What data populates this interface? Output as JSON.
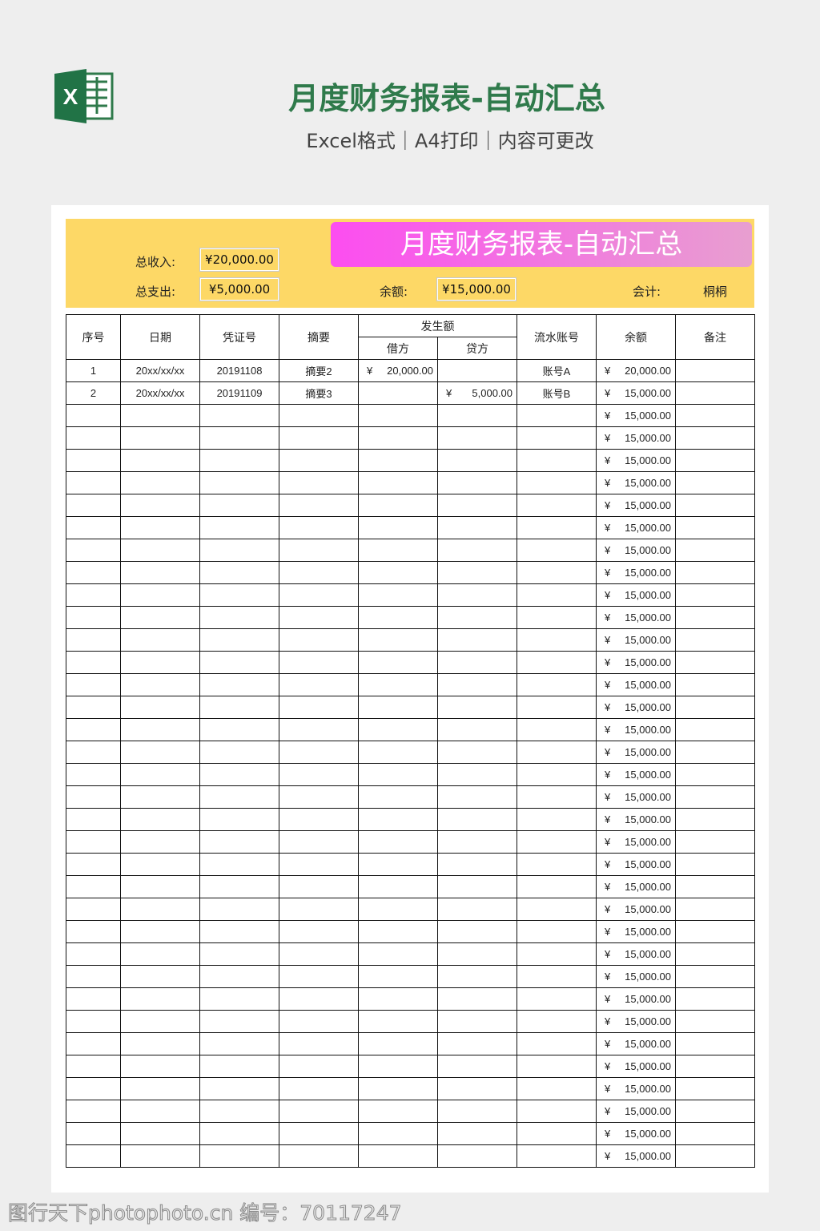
{
  "header": {
    "title": "月度财务报表-自动汇总",
    "subtitle": "Excel格式｜A4打印｜内容可更改",
    "logo_letter": "X"
  },
  "summary": {
    "banner": "月度财务报表-自动汇总",
    "income_label": "总收入:",
    "income": "¥20,000.00",
    "expense_label": "总支出:",
    "expense": "¥5,000.00",
    "balance_label": "余额:",
    "balance": "¥15,000.00",
    "accountant_label": "会计:",
    "accountant": "桐桐"
  },
  "colors": {
    "band": "#fdd866",
    "banner_start": "#fc4df0",
    "banner_end": "#e89fd0",
    "title": "#2f7a4b"
  },
  "table": {
    "headers": {
      "seq": "序号",
      "date": "日期",
      "voucher": "凭证号",
      "summary": "摘要",
      "amount": "发生额",
      "debit": "借方",
      "credit": "贷方",
      "account": "流水账号",
      "balance": "余额",
      "note": "备注"
    },
    "currency": "¥",
    "rows": [
      [
        "1",
        "20xx/xx/xx",
        "20191108",
        "摘要2",
        "20,000.00",
        "",
        "账号A",
        "20,000.00",
        ""
      ],
      [
        "2",
        "20xx/xx/xx",
        "20191109",
        "摘要3",
        "",
        "5,000.00",
        "账号B",
        "15,000.00",
        ""
      ],
      [
        "",
        "",
        "",
        "",
        "",
        "",
        "",
        "15,000.00",
        ""
      ],
      [
        "",
        "",
        "",
        "",
        "",
        "",
        "",
        "15,000.00",
        ""
      ],
      [
        "",
        "",
        "",
        "",
        "",
        "",
        "",
        "15,000.00",
        ""
      ],
      [
        "",
        "",
        "",
        "",
        "",
        "",
        "",
        "15,000.00",
        ""
      ],
      [
        "",
        "",
        "",
        "",
        "",
        "",
        "",
        "15,000.00",
        ""
      ],
      [
        "",
        "",
        "",
        "",
        "",
        "",
        "",
        "15,000.00",
        ""
      ],
      [
        "",
        "",
        "",
        "",
        "",
        "",
        "",
        "15,000.00",
        ""
      ],
      [
        "",
        "",
        "",
        "",
        "",
        "",
        "",
        "15,000.00",
        ""
      ],
      [
        "",
        "",
        "",
        "",
        "",
        "",
        "",
        "15,000.00",
        ""
      ],
      [
        "",
        "",
        "",
        "",
        "",
        "",
        "",
        "15,000.00",
        ""
      ],
      [
        "",
        "",
        "",
        "",
        "",
        "",
        "",
        "15,000.00",
        ""
      ],
      [
        "",
        "",
        "",
        "",
        "",
        "",
        "",
        "15,000.00",
        ""
      ],
      [
        "",
        "",
        "",
        "",
        "",
        "",
        "",
        "15,000.00",
        ""
      ],
      [
        "",
        "",
        "",
        "",
        "",
        "",
        "",
        "15,000.00",
        ""
      ],
      [
        "",
        "",
        "",
        "",
        "",
        "",
        "",
        "15,000.00",
        ""
      ],
      [
        "",
        "",
        "",
        "",
        "",
        "",
        "",
        "15,000.00",
        ""
      ],
      [
        "",
        "",
        "",
        "",
        "",
        "",
        "",
        "15,000.00",
        ""
      ],
      [
        "",
        "",
        "",
        "",
        "",
        "",
        "",
        "15,000.00",
        ""
      ],
      [
        "",
        "",
        "",
        "",
        "",
        "",
        "",
        "15,000.00",
        ""
      ],
      [
        "",
        "",
        "",
        "",
        "",
        "",
        "",
        "15,000.00",
        ""
      ],
      [
        "",
        "",
        "",
        "",
        "",
        "",
        "",
        "15,000.00",
        ""
      ],
      [
        "",
        "",
        "",
        "",
        "",
        "",
        "",
        "15,000.00",
        ""
      ],
      [
        "",
        "",
        "",
        "",
        "",
        "",
        "",
        "15,000.00",
        ""
      ],
      [
        "",
        "",
        "",
        "",
        "",
        "",
        "",
        "15,000.00",
        ""
      ],
      [
        "",
        "",
        "",
        "",
        "",
        "",
        "",
        "15,000.00",
        ""
      ],
      [
        "",
        "",
        "",
        "",
        "",
        "",
        "",
        "15,000.00",
        ""
      ],
      [
        "",
        "",
        "",
        "",
        "",
        "",
        "",
        "15,000.00",
        ""
      ],
      [
        "",
        "",
        "",
        "",
        "",
        "",
        "",
        "15,000.00",
        ""
      ],
      [
        "",
        "",
        "",
        "",
        "",
        "",
        "",
        "15,000.00",
        ""
      ],
      [
        "",
        "",
        "",
        "",
        "",
        "",
        "",
        "15,000.00",
        ""
      ],
      [
        "",
        "",
        "",
        "",
        "",
        "",
        "",
        "15,000.00",
        ""
      ],
      [
        "",
        "",
        "",
        "",
        "",
        "",
        "",
        "15,000.00",
        ""
      ],
      [
        "",
        "",
        "",
        "",
        "",
        "",
        "",
        "15,000.00",
        ""
      ],
      [
        "",
        "",
        "",
        "",
        "",
        "",
        "",
        "15,000.00",
        ""
      ]
    ]
  },
  "watermark": "图行天下photophoto.cn 编号：70117247"
}
